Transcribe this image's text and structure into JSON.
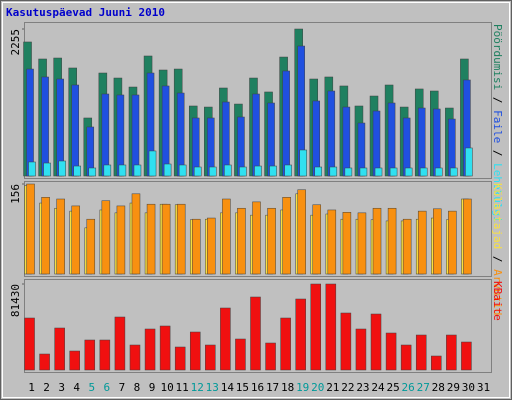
{
  "title": "Kasutuspäevad Juuni 2010",
  "weekend_indices": [
    4,
    5,
    11,
    12,
    18,
    19,
    25,
    26
  ],
  "weekend_color": "#009999",
  "label_color": "#000000",
  "chart_data": [
    {
      "type": "bar",
      "ylim": [
        0,
        2255
      ],
      "yticks": [
        2255
      ],
      "series": [
        {
          "name": "Pöördumisi",
          "color": "#1f8060",
          "values": [
            2056,
            1795,
            1810,
            1657,
            890,
            1580,
            1503,
            1365,
            1841,
            1626,
            1641,
            1074,
            1058,
            1350,
            1104,
            1503,
            1289,
            1825,
            2255,
            1488,
            1519,
            1381,
            1074,
            1227,
            1396,
            1058,
            1335,
            1304,
            1043,
            1795,
            null
          ]
        },
        {
          "name": "Faile",
          "color": "#2050e0",
          "values": [
            1641,
            1519,
            1488,
            1396,
            752,
            1258,
            1243,
            1243,
            1580,
            1381,
            1273,
            890,
            890,
            1135,
            905,
            1258,
            1120,
            1611,
            1994,
            1151,
            1304,
            1058,
            813,
            997,
            1120,
            890,
            1043,
            1028,
            874,
            1473,
            null
          ]
        },
        {
          "name": "Lehekülgi",
          "color": "#30e0f0",
          "values": [
            215,
            199,
            230,
            153,
            123,
            169,
            169,
            169,
            384,
            184,
            169,
            138,
            138,
            169,
            138,
            153,
            153,
            169,
            399,
            138,
            138,
            123,
            123,
            123,
            123,
            123,
            123,
            123,
            123,
            430,
            null
          ]
        }
      ]
    },
    {
      "type": "bar",
      "ylim": [
        0,
        156
      ],
      "yticks": [
        156
      ],
      "series": [
        {
          "name": "Külastajad",
          "color": "#f8e040",
          "values": [
            153,
            123,
            114,
            109,
            80,
            111,
            106,
            123,
            106,
            121,
            120,
            94,
            95,
            106,
            106,
            102,
            102,
            111,
            139,
            102,
            104,
            95,
            95,
            94,
            92,
            92,
            95,
            97,
            94,
            130,
            null
          ]
        },
        {
          "name": "Arvutid",
          "color": "#f89010",
          "values": [
            156,
            133,
            130,
            118,
            95,
            127,
            118,
            139,
            121,
            121,
            121,
            95,
            97,
            130,
            114,
            125,
            114,
            133,
            146,
            120,
            111,
            107,
            106,
            114,
            114,
            95,
            109,
            113,
            109,
            130,
            null
          ]
        }
      ]
    },
    {
      "type": "bar",
      "ylim": [
        0,
        81430
      ],
      "yticks": [
        81430
      ],
      "categories": [
        "1",
        "2",
        "3",
        "4",
        "5",
        "6",
        "7",
        "8",
        "9",
        "10",
        "11",
        "12",
        "13",
        "14",
        "15",
        "16",
        "17",
        "18",
        "19",
        "20",
        "21",
        "22",
        "23",
        "24",
        "25",
        "26",
        "27",
        "28",
        "29",
        "30",
        "31"
      ],
      "series": [
        {
          "name": "KBaite",
          "color": "#f01010",
          "values": [
            49237,
            15150,
            39769,
            17991,
            28407,
            28407,
            50184,
            23672,
            38823,
            41663,
            21778,
            35981,
            23672,
            58707,
            29353,
            69122,
            25565,
            49237,
            67228,
            81430,
            81430,
            53972,
            38823,
            53025,
            35034,
            23672,
            33140,
            13256,
            33140,
            26512,
            null
          ]
        }
      ]
    }
  ]
}
